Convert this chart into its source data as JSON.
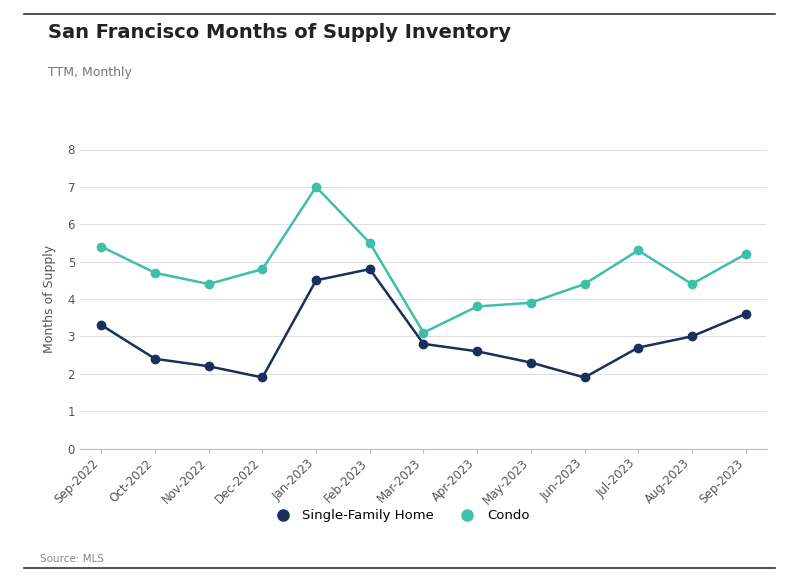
{
  "title": "San Francisco Months of Supply Inventory",
  "subtitle": "TTM, Monthly",
  "source": "Source: MLS",
  "ylabel": "Months of Supply",
  "categories": [
    "Sep-2022",
    "Oct-2022",
    "Nov-2022",
    "Dec-2022",
    "Jan-2023",
    "Feb-2023",
    "Mar-2023",
    "Apr-2023",
    "May-2023",
    "Jun-2023",
    "Jul-2023",
    "Aug-2023",
    "Sep-2023"
  ],
  "sfh_values": [
    3.3,
    2.4,
    2.2,
    1.9,
    4.5,
    4.8,
    2.8,
    2.6,
    2.3,
    1.9,
    2.7,
    3.0,
    3.6
  ],
  "condo_values": [
    5.4,
    4.7,
    4.4,
    4.8,
    7.0,
    5.5,
    3.1,
    3.8,
    3.9,
    4.4,
    5.3,
    4.4,
    5.2
  ],
  "sfh_color": "#1b2f5e",
  "condo_color": "#3dbfaa",
  "sfh_label": "Single-Family Home",
  "condo_label": "Condo",
  "ylim": [
    0,
    8
  ],
  "yticks": [
    0,
    1,
    2,
    3,
    4,
    5,
    6,
    7,
    8
  ],
  "background_color": "#ffffff",
  "plot_bg_color": "#f7f7f7",
  "grid_color": "#dddddd",
  "border_color": "#333333",
  "title_fontsize": 14,
  "subtitle_fontsize": 9,
  "axis_label_fontsize": 9,
  "tick_fontsize": 8.5,
  "legend_fontsize": 9.5,
  "source_fontsize": 7.5,
  "marker_size": 6,
  "line_width": 1.8
}
